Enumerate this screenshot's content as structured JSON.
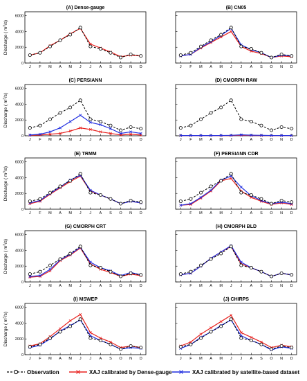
{
  "months": [
    "J",
    "F",
    "M",
    "A",
    "M",
    "J",
    "J",
    "A",
    "S",
    "O",
    "N",
    "D"
  ],
  "y_ticks": [
    0,
    2000,
    4000,
    6000
  ],
  "y_axis_label_prefix": "Discharge",
  "y_axis_label_unit_pre": "( m",
  "y_axis_label_unit_sup": "3",
  "y_axis_label_unit_post": "/s)",
  "series_colors": {
    "observation": "#000000",
    "dense": "#e8211e",
    "satellite": "#1f2de0"
  },
  "legend": {
    "observation": "Observation",
    "dense": "XAJ calibrated by Dense-gauge",
    "satellite": "XAJ calibrated by satellite-based dataset"
  },
  "chart_data": [
    {
      "type": "line",
      "title": "(A) Dense-gauge",
      "ylim": [
        0,
        6500
      ],
      "categories": [
        "J",
        "F",
        "M",
        "A",
        "M",
        "J",
        "J",
        "A",
        "S",
        "O",
        "N",
        "D"
      ],
      "series": [
        {
          "key": "observation",
          "values": [
            1000,
            1300,
            2100,
            2900,
            3600,
            4500,
            2100,
            1800,
            1300,
            700,
            1100,
            900
          ]
        },
        {
          "key": "dense",
          "values": [
            1000,
            1300,
            2200,
            2900,
            3700,
            4400,
            2400,
            1900,
            1400,
            800,
            1000,
            900
          ]
        }
      ]
    },
    {
      "type": "line",
      "title": "(B) CN05",
      "ylim": [
        0,
        6500
      ],
      "categories": [
        "J",
        "F",
        "M",
        "A",
        "M",
        "J",
        "J",
        "A",
        "S",
        "O",
        "N",
        "D"
      ],
      "series": [
        {
          "key": "observation",
          "values": [
            1000,
            1300,
            2100,
            2900,
            3600,
            4500,
            2100,
            1800,
            1300,
            700,
            1100,
            900
          ]
        },
        {
          "key": "dense",
          "values": [
            900,
            1100,
            1900,
            2600,
            3300,
            4000,
            2100,
            1500,
            1200,
            700,
            900,
            800
          ]
        },
        {
          "key": "satellite",
          "values": [
            900,
            1100,
            2000,
            2700,
            3500,
            4400,
            2300,
            1700,
            1300,
            700,
            1000,
            900
          ]
        }
      ]
    },
    {
      "type": "line",
      "title": "(C) PERSIANN",
      "ylim": [
        0,
        6500
      ],
      "categories": [
        "J",
        "F",
        "M",
        "A",
        "M",
        "J",
        "J",
        "A",
        "S",
        "O",
        "N",
        "D"
      ],
      "series": [
        {
          "key": "observation",
          "values": [
            1000,
            1300,
            2100,
            2900,
            3600,
            4500,
            2100,
            1800,
            1300,
            700,
            1100,
            900
          ]
        },
        {
          "key": "dense",
          "values": [
            50,
            100,
            200,
            300,
            600,
            1000,
            800,
            500,
            300,
            100,
            200,
            100
          ]
        },
        {
          "key": "satellite",
          "values": [
            100,
            200,
            500,
            1000,
            1800,
            2600,
            1700,
            1400,
            900,
            300,
            500,
            300
          ]
        }
      ]
    },
    {
      "type": "line",
      "title": "(D) CMORPH RAW",
      "ylim": [
        0,
        6500
      ],
      "categories": [
        "J",
        "F",
        "M",
        "A",
        "M",
        "J",
        "J",
        "A",
        "S",
        "O",
        "N",
        "D"
      ],
      "series": [
        {
          "key": "observation",
          "values": [
            1000,
            1300,
            2100,
            2900,
            3600,
            4500,
            2100,
            1800,
            1300,
            700,
            1100,
            900
          ]
        },
        {
          "key": "dense",
          "values": [
            20,
            20,
            20,
            20,
            20,
            30,
            60,
            40,
            30,
            20,
            20,
            20
          ]
        },
        {
          "key": "satellite",
          "values": [
            30,
            30,
            30,
            30,
            40,
            60,
            120,
            80,
            60,
            40,
            30,
            30
          ]
        }
      ]
    },
    {
      "type": "line",
      "title": "(E) TRMM",
      "ylim": [
        0,
        6500
      ],
      "categories": [
        "J",
        "F",
        "M",
        "A",
        "M",
        "J",
        "J",
        "A",
        "S",
        "O",
        "N",
        "D"
      ],
      "series": [
        {
          "key": "observation",
          "values": [
            1000,
            1300,
            2100,
            2900,
            3600,
            4500,
            2100,
            1800,
            1300,
            700,
            1100,
            900
          ]
        },
        {
          "key": "dense",
          "values": [
            700,
            1000,
            1900,
            2700,
            3500,
            4200,
            2300,
            1800,
            1300,
            700,
            1000,
            800
          ]
        },
        {
          "key": "satellite",
          "values": [
            800,
            1100,
            2000,
            2800,
            3700,
            4300,
            2400,
            1800,
            1300,
            700,
            1000,
            800
          ]
        }
      ]
    },
    {
      "type": "line",
      "title": "(F) PERSIANN CDR",
      "ylim": [
        0,
        6500
      ],
      "categories": [
        "J",
        "F",
        "M",
        "A",
        "M",
        "J",
        "J",
        "A",
        "S",
        "O",
        "N",
        "D"
      ],
      "series": [
        {
          "key": "observation",
          "values": [
            1000,
            1300,
            2100,
            2900,
            3600,
            4500,
            2100,
            1800,
            1300,
            700,
            1100,
            900
          ]
        },
        {
          "key": "dense",
          "values": [
            500,
            600,
            1400,
            2300,
            3600,
            3900,
            2300,
            1500,
            1000,
            600,
            800,
            600
          ]
        },
        {
          "key": "satellite",
          "values": [
            500,
            700,
            1500,
            2400,
            3700,
            4200,
            2800,
            1700,
            1100,
            700,
            900,
            700
          ]
        }
      ]
    },
    {
      "type": "line",
      "title": "(G) CMORPH CRT",
      "ylim": [
        0,
        6500
      ],
      "categories": [
        "J",
        "F",
        "M",
        "A",
        "M",
        "J",
        "J",
        "A",
        "S",
        "O",
        "N",
        "D"
      ],
      "series": [
        {
          "key": "observation",
          "values": [
            1000,
            1300,
            2100,
            2900,
            3600,
            4500,
            2100,
            1800,
            1300,
            700,
            1100,
            900
          ]
        },
        {
          "key": "dense",
          "values": [
            600,
            700,
            1400,
            2700,
            3400,
            4300,
            2300,
            1600,
            1200,
            700,
            1000,
            800
          ]
        },
        {
          "key": "satellite",
          "values": [
            700,
            800,
            1600,
            2800,
            3500,
            4400,
            2500,
            1800,
            1400,
            800,
            1200,
            900
          ]
        }
      ]
    },
    {
      "type": "line",
      "title": "(H) CMORPH BLD",
      "ylim": [
        0,
        6500
      ],
      "categories": [
        "J",
        "F",
        "M",
        "A",
        "M",
        "J",
        "J",
        "A",
        "S",
        "O",
        "N",
        "D"
      ],
      "series": [
        {
          "key": "observation",
          "values": [
            1000,
            1300,
            2100,
            2900,
            3600,
            4500,
            2100,
            1800,
            1300,
            700,
            1100,
            900
          ]
        },
        {
          "key": "dense",
          "values": [
            900,
            1100,
            2000,
            3000,
            3800,
            4500,
            2300,
            1800,
            1300,
            700,
            1100,
            900
          ]
        },
        {
          "key": "satellite",
          "values": [
            900,
            1100,
            2000,
            3000,
            3800,
            4600,
            2500,
            1800,
            1300,
            700,
            1100,
            900
          ]
        }
      ]
    },
    {
      "type": "line",
      "title": "(I) MSWEP",
      "ylim": [
        0,
        6500
      ],
      "categories": [
        "J",
        "F",
        "M",
        "A",
        "M",
        "J",
        "J",
        "A",
        "S",
        "O",
        "N",
        "D"
      ],
      "series": [
        {
          "key": "observation",
          "values": [
            1000,
            1300,
            2100,
            2900,
            3600,
            4500,
            2100,
            1800,
            1300,
            700,
            1100,
            900
          ]
        },
        {
          "key": "dense",
          "values": [
            1100,
            1400,
            2300,
            3300,
            4300,
            5100,
            2800,
            2100,
            1600,
            900,
            1100,
            900
          ]
        },
        {
          "key": "satellite",
          "values": [
            900,
            1200,
            2000,
            3000,
            3700,
            4400,
            2400,
            1800,
            1300,
            700,
            900,
            800
          ]
        }
      ]
    },
    {
      "type": "line",
      "title": "(J) CHIRPS",
      "ylim": [
        0,
        6500
      ],
      "categories": [
        "J",
        "F",
        "M",
        "A",
        "M",
        "J",
        "J",
        "A",
        "S",
        "O",
        "N",
        "D"
      ],
      "series": [
        {
          "key": "observation",
          "values": [
            1000,
            1300,
            2100,
            2900,
            3600,
            4500,
            2100,
            1800,
            1300,
            700,
            1100,
            900
          ]
        },
        {
          "key": "dense",
          "values": [
            1100,
            1600,
            2600,
            3400,
            4200,
            5000,
            2800,
            2200,
            1600,
            900,
            1200,
            1000
          ]
        },
        {
          "key": "satellite",
          "values": [
            800,
            1300,
            2200,
            2900,
            3700,
            4400,
            2400,
            1800,
            1300,
            600,
            1000,
            800
          ]
        }
      ]
    }
  ]
}
